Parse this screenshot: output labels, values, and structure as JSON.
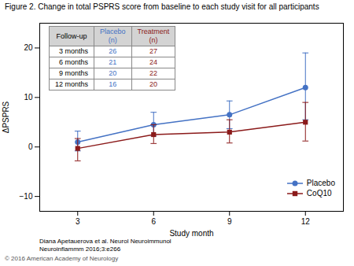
{
  "chart_data": {
    "type": "line",
    "title": "Figure 2. Change in total PSPRS score from baseline to each study visit for all participants",
    "xlabel": "Study month",
    "ylabel": "ΔPSPRS",
    "x": [
      3,
      6,
      9,
      12
    ],
    "series": [
      {
        "name": "Placebo",
        "color": "#4472C4",
        "marker": "circle",
        "values": [
          1.0,
          4.5,
          6.5,
          12.0
        ],
        "yerr_low": [
          1.8,
          2.3,
          2.8,
          6.5
        ],
        "yerr_high": [
          2.2,
          2.5,
          2.8,
          7.0
        ]
      },
      {
        "name": "CoQ10",
        "color": "#8B1A1A",
        "marker": "square",
        "values": [
          -0.3,
          2.5,
          3.0,
          5.0
        ],
        "yerr_low": [
          2.5,
          1.8,
          2.2,
          3.8
        ],
        "yerr_high": [
          2.0,
          2.0,
          2.5,
          4.0
        ]
      }
    ],
    "xlim": [
      1.5,
      13.5
    ],
    "xticks": [
      3,
      6,
      9,
      12
    ],
    "ylim": [
      -13,
      25
    ],
    "yticks": [
      -10,
      0,
      10,
      20
    ],
    "grid": false,
    "legend": "lower right",
    "table": {
      "columns": [
        "Follow-up",
        "Placebo\n(n)",
        "Treatment\n(n)"
      ],
      "rows": [
        [
          "3 months",
          "26",
          "27"
        ],
        [
          "6 months",
          "21",
          "24"
        ],
        [
          "9 months",
          "20",
          "22"
        ],
        [
          "12 months",
          "16",
          "20"
        ]
      ]
    },
    "annotations": [
      "Diana Apetauerova et al. Neurol Neuroimmunol",
      "Neuroinflammm 2016;3:e266",
      "© 2016 American Academy of Neurology"
    ]
  }
}
